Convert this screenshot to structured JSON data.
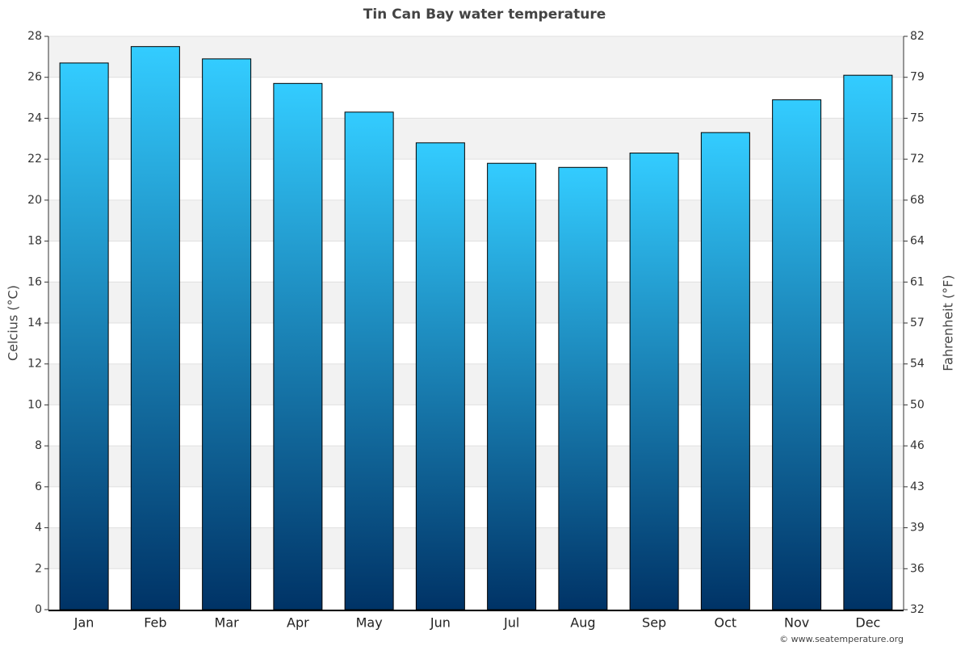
{
  "chart_data": {
    "type": "bar",
    "title": "Tin Can Bay water temperature",
    "y_label": "Celcius (°C)",
    "y2_label": "Fahrenheit (°F)",
    "credit": "© www.seatemperature.org",
    "categories": [
      "Jan",
      "Feb",
      "Mar",
      "Apr",
      "May",
      "Jun",
      "Jul",
      "Aug",
      "Sep",
      "Oct",
      "Nov",
      "Dec"
    ],
    "values": [
      26.7,
      27.5,
      26.9,
      25.7,
      24.3,
      22.8,
      21.8,
      21.6,
      22.3,
      23.3,
      24.9,
      26.1
    ],
    "color": "#1a8cc8",
    "gradient": [
      "#33ccff",
      "#003366"
    ],
    "ylim": [
      0,
      28
    ],
    "yticks": [
      0,
      2,
      4,
      6,
      8,
      10,
      12,
      14,
      16,
      18,
      20,
      22,
      24,
      26,
      28
    ],
    "y2lim": [
      32,
      82.4
    ],
    "y2ticks": [
      32,
      {
        "value": 35.6,
        "label": "36"
      },
      {
        "value": 39.2,
        "label": "39"
      },
      {
        "value": 42.8,
        "label": "43"
      },
      {
        "value": 46.4,
        "label": "46"
      },
      50,
      {
        "value": 53.6,
        "label": "54"
      },
      {
        "value": 57.2,
        "label": "57"
      },
      {
        "value": 60.8,
        "label": "61"
      },
      {
        "value": 64.4,
        "label": "64"
      },
      68,
      {
        "value": 71.6,
        "label": "72"
      },
      {
        "value": 75.2,
        "label": "75"
      },
      {
        "value": 78.8,
        "label": "79"
      },
      {
        "value": 82.4,
        "label": "82"
      }
    ],
    "grid": true
  }
}
